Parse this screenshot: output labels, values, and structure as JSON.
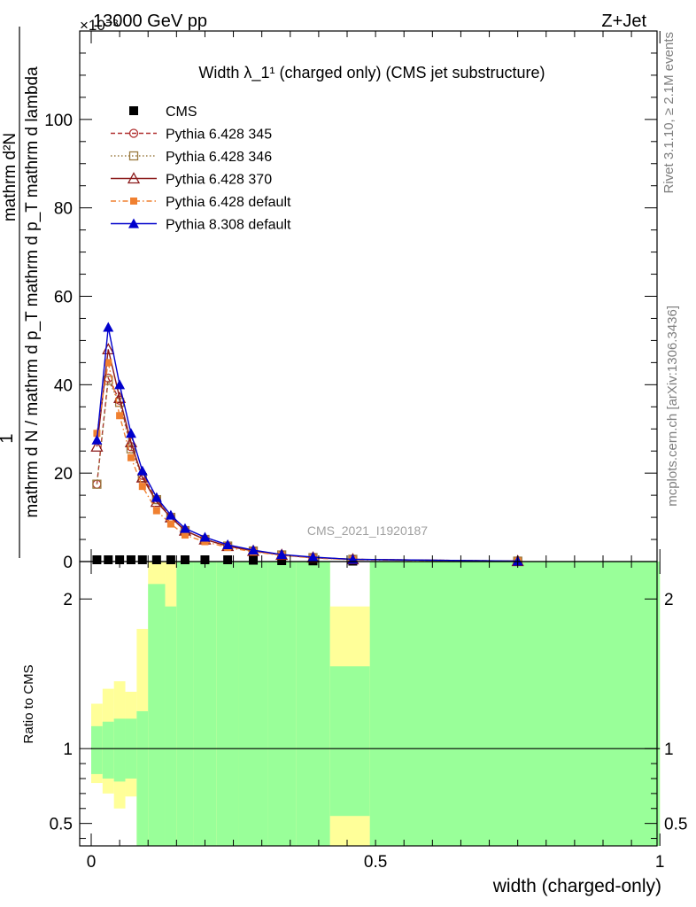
{
  "header": {
    "left": "13000 GeV pp",
    "right": "Z+Jet",
    "exponent": "×10⁻³"
  },
  "side_labels": {
    "rivet": "Rivet 3.1.10, ≥ 2.1M events",
    "mcplots": "mcplots.cern.ch [arXiv:1306.3436]"
  },
  "watermark": "CMS_2021_I1920187",
  "chart_data": [
    {
      "type": "line",
      "title": "Width λ_1¹ (charged only) (CMS jet substructure)",
      "ylabel_numerator": "1",
      "ylabel": "mathrm d N / mathrm d p_T mathrm d p_T mathrm d^2N / mathrm d lambda",
      "ylabel_display": {
        "numerator": "mathrm d²N",
        "denominator": "mathrm d N / mathrm d p_T mathrm d p_T mathrm d lambda"
      },
      "xlim": [
        0,
        1
      ],
      "ylim": [
        0,
        120
      ],
      "yticks": [
        0,
        20,
        40,
        60,
        80,
        100
      ],
      "legend_position": "top-left",
      "colors": {
        "cms": "#000000",
        "p345": "#b03030",
        "p346": "#9a7a40",
        "p370": "#8b1a1a",
        "p6def": "#f08030",
        "p8def": "#0000cc"
      },
      "series": [
        {
          "name": "CMS",
          "key": "cms",
          "marker": "square",
          "x": [
            0.01,
            0.03,
            0.05,
            0.07,
            0.09,
            0.115,
            0.14,
            0.165,
            0.2,
            0.24,
            0.285,
            0.335,
            0.39,
            0.46,
            0.75
          ],
          "y": [
            0.4,
            0.4,
            0.4,
            0.4,
            0.4,
            0.4,
            0.4,
            0.4,
            0.4,
            0.4,
            0.3,
            0.2,
            0.15,
            0.1,
            0.02
          ]
        },
        {
          "name": "Pythia 6.428 345",
          "key": "p345",
          "marker": "open-circle",
          "dash": "5,3",
          "x": [
            0.01,
            0.03,
            0.05,
            0.07,
            0.09,
            0.115,
            0.14,
            0.165,
            0.2,
            0.24,
            0.285,
            0.335,
            0.39,
            0.46,
            0.75
          ],
          "y": [
            17.5,
            41.5,
            36.5,
            26,
            19.5,
            14,
            10,
            7,
            5,
            3.5,
            2.4,
            1.5,
            0.9,
            0.5,
            0.1
          ]
        },
        {
          "name": "Pythia 6.428 346",
          "key": "p346",
          "marker": "open-square",
          "dash": "1.5,2.5",
          "x": [
            0.01,
            0.03,
            0.05,
            0.07,
            0.09,
            0.115,
            0.14,
            0.165,
            0.2,
            0.24,
            0.285,
            0.335,
            0.39,
            0.46,
            0.75
          ],
          "y": [
            17.5,
            41,
            36,
            25.5,
            19,
            14,
            10,
            7,
            5,
            3.5,
            2.4,
            1.5,
            0.9,
            0.5,
            0.1
          ]
        },
        {
          "name": "Pythia 6.428 370",
          "key": "p370",
          "marker": "open-triangle",
          "dash": "",
          "x": [
            0.01,
            0.03,
            0.05,
            0.07,
            0.09,
            0.115,
            0.14,
            0.165,
            0.2,
            0.24,
            0.285,
            0.335,
            0.39,
            0.46,
            0.75
          ],
          "y": [
            26,
            48,
            37,
            27,
            19,
            13.5,
            10,
            7,
            5,
            3.5,
            2.4,
            1.5,
            0.9,
            0.5,
            0.1
          ]
        },
        {
          "name": "Pythia 6.428 default",
          "key": "p6def",
          "marker": "filled-square",
          "dash": "6,3,1.5,3",
          "x": [
            0.01,
            0.03,
            0.05,
            0.07,
            0.09,
            0.115,
            0.14,
            0.165,
            0.2,
            0.24,
            0.285,
            0.335,
            0.39,
            0.46,
            0.75
          ],
          "y": [
            29,
            45,
            33,
            23.5,
            17,
            11.5,
            8.5,
            6,
            4.5,
            3.2,
            2.2,
            1.4,
            0.8,
            0.4,
            0.1
          ]
        },
        {
          "name": "Pythia 8.308 default",
          "key": "p8def",
          "marker": "filled-triangle",
          "dash": "",
          "x": [
            0.01,
            0.03,
            0.05,
            0.07,
            0.09,
            0.115,
            0.14,
            0.165,
            0.2,
            0.24,
            0.285,
            0.335,
            0.39,
            0.46,
            0.75
          ],
          "y": [
            27.5,
            53,
            40,
            29,
            20.5,
            14.5,
            10.5,
            7.5,
            5.5,
            3.8,
            2.6,
            1.6,
            1.0,
            0.5,
            0.1
          ]
        }
      ]
    },
    {
      "type": "area",
      "ylabel": "Ratio to CMS",
      "xlabel": "width (charged-only)",
      "xlim": [
        0,
        1
      ],
      "ylim": [
        0.35,
        2.25
      ],
      "yticks": [
        0.5,
        1,
        2
      ],
      "xticks": [
        0,
        0.5,
        1
      ],
      "xtick_labels": [
        "0",
        "0.5",
        "1"
      ],
      "reference_line": 1,
      "bands": {
        "stat_color": "#99ff99",
        "total_color": "#ffff99",
        "bins": [
          {
            "x0": 0.0,
            "x1": 0.02,
            "stat": [
              0.83,
              1.15
            ],
            "total": [
              0.77,
              1.3
            ]
          },
          {
            "x0": 0.02,
            "x1": 0.04,
            "stat": [
              0.8,
              1.18
            ],
            "total": [
              0.7,
              1.4
            ]
          },
          {
            "x0": 0.04,
            "x1": 0.06,
            "stat": [
              0.78,
              1.2
            ],
            "total": [
              0.6,
              1.45
            ]
          },
          {
            "x0": 0.06,
            "x1": 0.08,
            "stat": [
              0.8,
              1.2
            ],
            "total": [
              0.68,
              1.38
            ]
          },
          {
            "x0": 0.08,
            "x1": 0.1,
            "stat": [
              0.35,
              1.25
            ],
            "total": [
              0.35,
              1.8
            ]
          },
          {
            "x0": 0.1,
            "x1": 0.13,
            "stat": [
              0.35,
              2.1
            ],
            "total": [
              0.35,
              2.25
            ]
          },
          {
            "x0": 0.13,
            "x1": 0.15,
            "stat": [
              0.35,
              1.95
            ],
            "total": [
              0.35,
              2.25
            ]
          },
          {
            "x0": 0.15,
            "x1": 0.18,
            "stat": [
              0.35,
              2.25
            ],
            "total": [
              0.35,
              2.25
            ]
          },
          {
            "x0": 0.18,
            "x1": 0.22,
            "stat": [
              0.35,
              2.25
            ],
            "total": [
              0.35,
              2.25
            ]
          },
          {
            "x0": 0.22,
            "x1": 0.26,
            "stat": [
              0.35,
              2.25
            ],
            "total": [
              0.35,
              2.25
            ]
          },
          {
            "x0": 0.26,
            "x1": 0.31,
            "stat": [
              0.35,
              2.25
            ],
            "total": [
              0.35,
              2.25
            ]
          },
          {
            "x0": 0.31,
            "x1": 0.36,
            "stat": [
              0.35,
              2.25
            ],
            "total": [
              0.35,
              2.25
            ]
          },
          {
            "x0": 0.36,
            "x1": 0.42,
            "stat": [
              0.35,
              2.25
            ],
            "total": [
              0.35,
              2.25
            ]
          },
          {
            "x0": 0.42,
            "x1": 0.49,
            "stat": [
              0.55,
              1.55
            ],
            "total": [
              0.35,
              1.95
            ]
          },
          {
            "x0": 0.49,
            "x1": 1.0,
            "stat": [
              0.35,
              2.25
            ],
            "total": [
              0.35,
              2.25
            ]
          }
        ]
      }
    }
  ]
}
